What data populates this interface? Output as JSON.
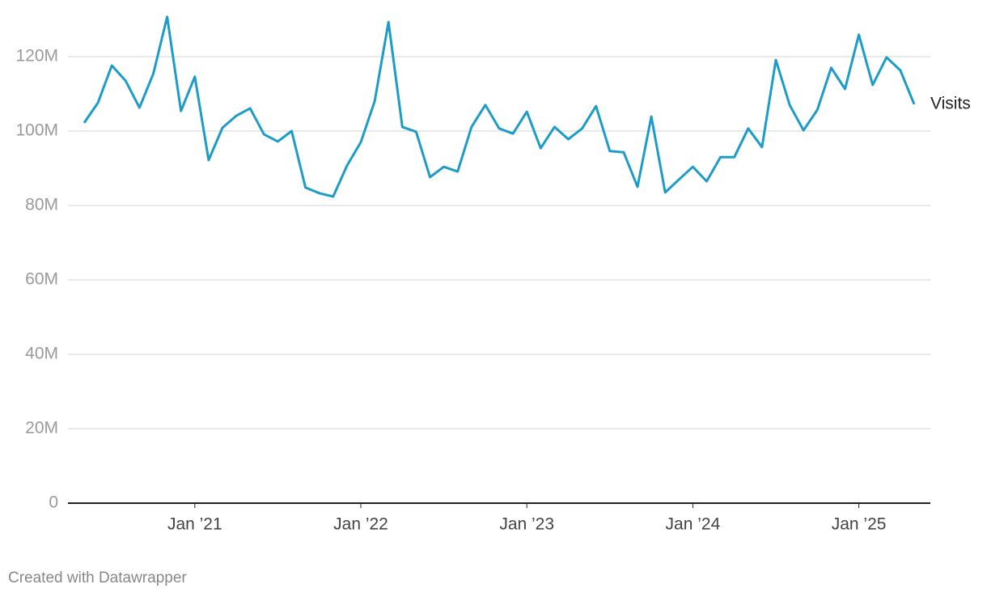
{
  "chart_data": {
    "type": "line",
    "x": [
      "2020-05",
      "2020-06",
      "2020-07",
      "2020-08",
      "2020-09",
      "2020-10",
      "2020-11",
      "2020-12",
      "2021-01",
      "2021-02",
      "2021-03",
      "2021-04",
      "2021-05",
      "2021-06",
      "2021-07",
      "2021-08",
      "2021-09",
      "2021-10",
      "2021-11",
      "2021-12",
      "2022-01",
      "2022-02",
      "2022-03",
      "2022-04",
      "2022-05",
      "2022-06",
      "2022-07",
      "2022-08",
      "2022-09",
      "2022-10",
      "2022-11",
      "2022-12",
      "2023-01",
      "2023-02",
      "2023-03",
      "2023-04",
      "2023-05",
      "2023-06",
      "2023-07",
      "2023-08",
      "2023-09",
      "2023-10",
      "2023-11",
      "2023-12",
      "2024-01",
      "2024-02",
      "2024-03",
      "2024-04",
      "2024-05",
      "2024-06",
      "2024-07",
      "2024-08",
      "2024-09",
      "2024-10",
      "2024-11",
      "2024-12",
      "2025-01",
      "2025-02",
      "2025-03",
      "2025-04",
      "2025-05"
    ],
    "series": [
      {
        "name": "Visits",
        "color": "#1d9bc9",
        "values": [
          102200000,
          107600000,
          117600000,
          113500000,
          106300000,
          115400000,
          130700000,
          105400000,
          114600000,
          92200000,
          100900000,
          104100000,
          106100000,
          99100000,
          97200000,
          100000000,
          84800000,
          83300000,
          82400000,
          90700000,
          97000000,
          108000000,
          129300000,
          101100000,
          99800000,
          87600000,
          90400000,
          89100000,
          101100000,
          107000000,
          100700000,
          99300000,
          105200000,
          95400000,
          101100000,
          97800000,
          100700000,
          106700000,
          94600000,
          94300000,
          85000000,
          103900000,
          83500000,
          87000000,
          90400000,
          86500000,
          93000000,
          93000000,
          100700000,
          95700000,
          119100000,
          107000000,
          100200000,
          105700000,
          117000000,
          111300000,
          125900000,
          112400000,
          119800000,
          116300000,
          107200000
        ]
      }
    ],
    "ylim": [
      0,
      132000000
    ],
    "yticks": [
      0,
      {
        "value": 20000000,
        "label": "20M"
      },
      {
        "value": 40000000,
        "label": "40M"
      },
      {
        "value": 60000000,
        "label": "60M"
      },
      {
        "value": 80000000,
        "label": "80M"
      },
      {
        "value": 100000000,
        "label": "100M"
      },
      {
        "value": 120000000,
        "label": "120M"
      }
    ],
    "xticks": [
      {
        "value": "2021-01",
        "label": "Jan ’21"
      },
      {
        "value": "2022-01",
        "label": "Jan ’22"
      },
      {
        "value": "2023-01",
        "label": "Jan ’23"
      },
      {
        "value": "2024-01",
        "label": "Jan ’24"
      },
      {
        "value": "2025-01",
        "label": "Jan ’25"
      }
    ],
    "grid": true,
    "credit": "Created with Datawrapper"
  }
}
